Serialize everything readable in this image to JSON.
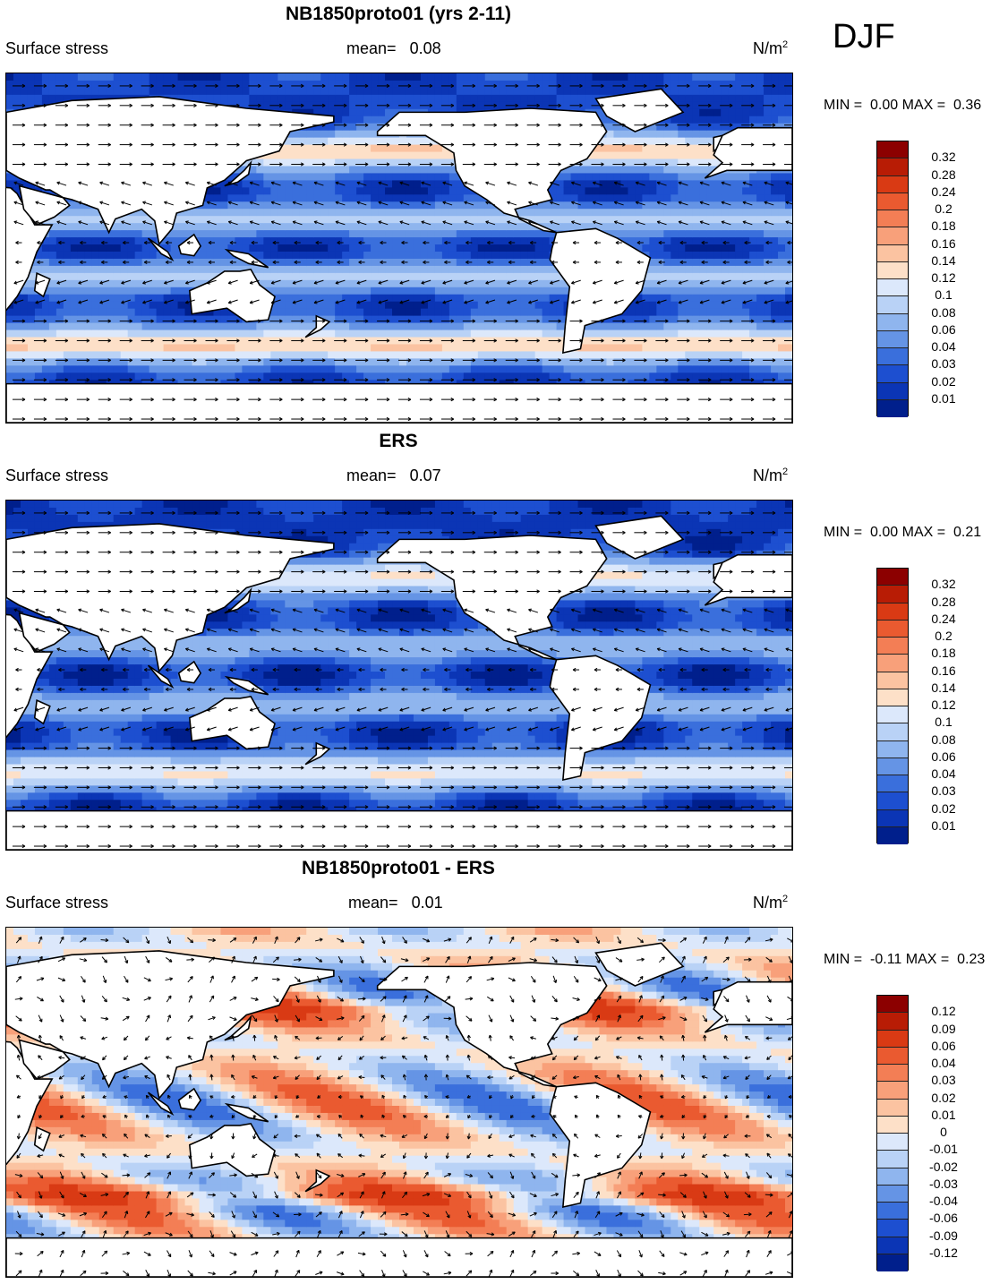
{
  "season": "DJF",
  "colors": {
    "pos_ramp": [
      "#fde0c8",
      "#fbc3a1",
      "#f8a07a",
      "#f37e55",
      "#ea5a30",
      "#d93a14",
      "#b81c05",
      "#8c0000"
    ],
    "neg_ramp": [
      "#dce8fb",
      "#b9d2f6",
      "#8fb5ee",
      "#6594e5",
      "#3a6fdc",
      "#1d4fd0",
      "#0b35b5",
      "#001f8c"
    ],
    "land": "#ffffff",
    "coast": "#000000"
  },
  "panels": [
    {
      "title": "NB1850proto01 (yrs 2-11)",
      "left_label": "Surface stress",
      "mean_label": "mean=",
      "mean_value": "0.08",
      "units": "N/m",
      "units_sup": "2",
      "min_label": "MIN =",
      "min_value": "0.00",
      "max_label": "MAX =",
      "max_value": "0.36",
      "kind": "abs",
      "colorbar_levels": [
        "0.32",
        "0.28",
        "0.24",
        "0.2",
        "0.18",
        "0.16",
        "0.14",
        "0.12",
        "0.1",
        "0.08",
        "0.06",
        "0.04",
        "0.03",
        "0.02",
        "0.01"
      ],
      "colorbar_colors": [
        "#8c0000",
        "#b81c05",
        "#d93a14",
        "#ea5a30",
        "#f37e55",
        "#f8a07a",
        "#fbc3a1",
        "#fde0c8",
        "#dce8fb",
        "#b9d2f6",
        "#8fb5ee",
        "#6594e5",
        "#3a6fdc",
        "#1d4fd0",
        "#0b35b5",
        "#001f8c"
      ]
    },
    {
      "title": "ERS",
      "left_label": "Surface stress",
      "mean_label": "mean=",
      "mean_value": "0.07",
      "units": "N/m",
      "units_sup": "2",
      "min_label": "MIN =",
      "min_value": "0.00",
      "max_label": "MAX =",
      "max_value": "0.21",
      "kind": "abs",
      "colorbar_levels": [
        "0.32",
        "0.28",
        "0.24",
        "0.2",
        "0.18",
        "0.16",
        "0.14",
        "0.12",
        "0.1",
        "0.08",
        "0.06",
        "0.04",
        "0.03",
        "0.02",
        "0.01"
      ],
      "colorbar_colors": [
        "#8c0000",
        "#b81c05",
        "#d93a14",
        "#ea5a30",
        "#f37e55",
        "#f8a07a",
        "#fbc3a1",
        "#fde0c8",
        "#dce8fb",
        "#b9d2f6",
        "#8fb5ee",
        "#6594e5",
        "#3a6fdc",
        "#1d4fd0",
        "#0b35b5",
        "#001f8c"
      ]
    },
    {
      "title": "NB1850proto01 - ERS",
      "left_label": "Surface stress",
      "mean_label": "mean=",
      "mean_value": "0.01",
      "units": "N/m",
      "units_sup": "2",
      "min_label": "MIN =",
      "min_value": "-0.11",
      "max_label": "MAX =",
      "max_value": "0.23",
      "kind": "diff",
      "colorbar_levels": [
        "0.12",
        "0.09",
        "0.06",
        "0.04",
        "0.03",
        "0.02",
        "0.01",
        "0",
        "-0.01",
        "-0.02",
        "-0.03",
        "-0.04",
        "-0.06",
        "-0.09",
        "-0.12"
      ],
      "colorbar_colors": [
        "#8c0000",
        "#b81c05",
        "#d93a14",
        "#ea5a30",
        "#f37e55",
        "#f8a07a",
        "#fbc3a1",
        "#fde0c8",
        "#dce8fb",
        "#b9d2f6",
        "#8fb5ee",
        "#6594e5",
        "#3a6fdc",
        "#1d4fd0",
        "#0b35b5",
        "#001f8c"
      ]
    }
  ]
}
